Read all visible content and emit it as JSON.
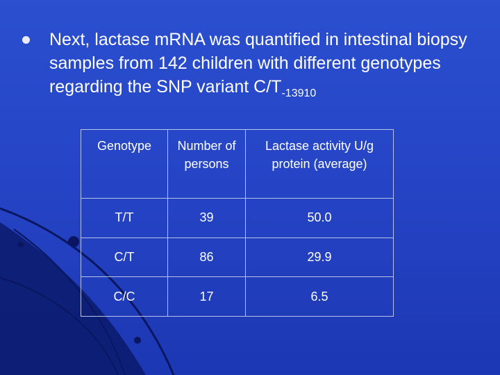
{
  "slide": {
    "bullet_main": "Next, lactase mRNA was quantified in intestinal biopsy samples from 142 children with different genotypes regarding the SNP variant C/T",
    "bullet_subscript": "-13910"
  },
  "table": {
    "headers": [
      "Genotype",
      "Number of persons",
      "Lactase activity U/g protein (average)"
    ],
    "rows": [
      [
        "T/T",
        "39",
        "50.0"
      ],
      [
        "C/T",
        "86",
        "29.9"
      ],
      [
        "C/C",
        "17",
        "6.5"
      ]
    ]
  },
  "colors": {
    "background": "#2a4fcf",
    "decor_dark": "#0b1a6b",
    "text": "#ffffff",
    "border": "#b9c3e6"
  }
}
